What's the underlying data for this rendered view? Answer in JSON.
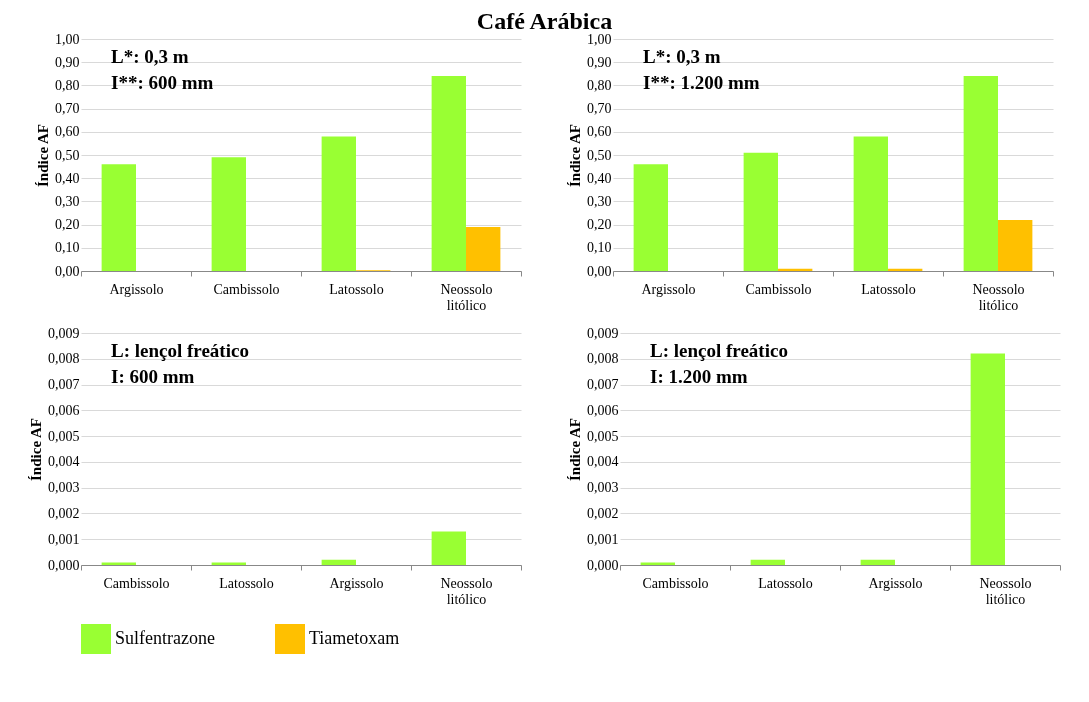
{
  "chart_data": [
    {
      "type": "bar",
      "title": "Café Arábica",
      "ylabel": "Índice AF",
      "categories": [
        "Argissolo",
        "Cambissolo",
        "Latossolo",
        "Neossolo litólico"
      ],
      "series": [
        {
          "name": "Sulfentrazone",
          "color": "#99ff33",
          "values": [
            0.46,
            0.49,
            0.58,
            0.84
          ]
        },
        {
          "name": "Tiametoxam",
          "color": "#ffc000",
          "values": [
            0,
            0,
            0.003,
            0.19
          ]
        }
      ],
      "ylim": [
        0,
        1
      ],
      "yticks": [
        {
          "value": 0,
          "label": "0,00"
        },
        {
          "value": 0.1,
          "label": "0,10"
        },
        {
          "value": 0.2,
          "label": "0,20"
        },
        {
          "value": 0.3,
          "label": "0,30"
        },
        {
          "value": 0.4,
          "label": "0,40"
        },
        {
          "value": 0.5,
          "label": "0,50"
        },
        {
          "value": 0.6,
          "label": "0,60"
        },
        {
          "value": 0.7,
          "label": "0,70"
        },
        {
          "value": 0.8,
          "label": "0,80"
        },
        {
          "value": 0.9,
          "label": "0,90"
        },
        {
          "value": 1,
          "label": "1,00"
        }
      ],
      "annotations": [
        "L*: 0,3 m",
        "I**: 600 mm"
      ],
      "grid": "y",
      "legend": "bottom"
    },
    {
      "type": "bar",
      "ylabel": "Índice AF",
      "categories": [
        "Argissolo",
        "Cambissolo",
        "Latossolo",
        "Neossolo litólico"
      ],
      "series": [
        {
          "name": "Sulfentrazone",
          "color": "#99ff33",
          "values": [
            0.46,
            0.51,
            0.58,
            0.84
          ]
        },
        {
          "name": "Tiametoxam",
          "color": "#ffc000",
          "values": [
            0,
            0.01,
            0.01,
            0.22
          ]
        }
      ],
      "ylim": [
        0,
        1
      ],
      "yticks": [
        {
          "value": 0,
          "label": "0,00"
        },
        {
          "value": 0.1,
          "label": "0,10"
        },
        {
          "value": 0.2,
          "label": "0,20"
        },
        {
          "value": 0.3,
          "label": "0,30"
        },
        {
          "value": 0.4,
          "label": "0,40"
        },
        {
          "value": 0.5,
          "label": "0,50"
        },
        {
          "value": 0.6,
          "label": "0,60"
        },
        {
          "value": 0.7,
          "label": "0,70"
        },
        {
          "value": 0.8,
          "label": "0,80"
        },
        {
          "value": 0.9,
          "label": "0,90"
        },
        {
          "value": 1,
          "label": "1,00"
        }
      ],
      "annotations": [
        "L*: 0,3 m",
        "I**: 1.200 mm"
      ],
      "grid": "y",
      "legend": "bottom"
    },
    {
      "type": "bar",
      "ylabel": "Índice AF",
      "categories": [
        "Cambissolo",
        "Latossolo",
        "Argissolo",
        "Neossolo litólico"
      ],
      "series": [
        {
          "name": "Sulfentrazone",
          "color": "#99ff33",
          "values": [
            0.0001,
            0.0001,
            0.0002,
            0.0013
          ]
        },
        {
          "name": "Tiametoxam",
          "color": "#ffc000",
          "values": [
            0,
            0,
            0,
            0
          ]
        }
      ],
      "ylim": [
        0,
        0.009
      ],
      "yticks": [
        {
          "value": 0,
          "label": "0,000"
        },
        {
          "value": 0.001,
          "label": "0,001"
        },
        {
          "value": 0.002,
          "label": "0,002"
        },
        {
          "value": 0.003,
          "label": "0,003"
        },
        {
          "value": 0.004,
          "label": "0,004"
        },
        {
          "value": 0.005,
          "label": "0,005"
        },
        {
          "value": 0.006,
          "label": "0,006"
        },
        {
          "value": 0.007,
          "label": "0,007"
        },
        {
          "value": 0.008,
          "label": "0,008"
        },
        {
          "value": 0.009,
          "label": "0,009"
        }
      ],
      "annotations": [
        "L: lençol freático",
        "I: 600 mm"
      ],
      "grid": "y",
      "legend": "bottom"
    },
    {
      "type": "bar",
      "ylabel": "Índice AF",
      "categories": [
        "Cambissolo",
        "Latossolo",
        "Argissolo",
        "Neossolo litólico"
      ],
      "series": [
        {
          "name": "Sulfentrazone",
          "color": "#99ff33",
          "values": [
            0.0001,
            0.0002,
            0.0002,
            0.0082
          ]
        },
        {
          "name": "Tiametoxam",
          "color": "#ffc000",
          "values": [
            0,
            0,
            0,
            0
          ]
        }
      ],
      "ylim": [
        0,
        0.009
      ],
      "yticks": [
        {
          "value": 0,
          "label": "0,000"
        },
        {
          "value": 0.001,
          "label": "0,001"
        },
        {
          "value": 0.002,
          "label": "0,002"
        },
        {
          "value": 0.003,
          "label": "0,003"
        },
        {
          "value": 0.004,
          "label": "0,004"
        },
        {
          "value": 0.005,
          "label": "0,005"
        },
        {
          "value": 0.006,
          "label": "0,006"
        },
        {
          "value": 0.007,
          "label": "0,007"
        },
        {
          "value": 0.008,
          "label": "0,008"
        },
        {
          "value": 0.009,
          "label": "0,009"
        }
      ],
      "annotations": [
        "L: lençol freático",
        "I: 1.200 mm"
      ],
      "grid": "y",
      "legend": "bottom"
    }
  ]
}
